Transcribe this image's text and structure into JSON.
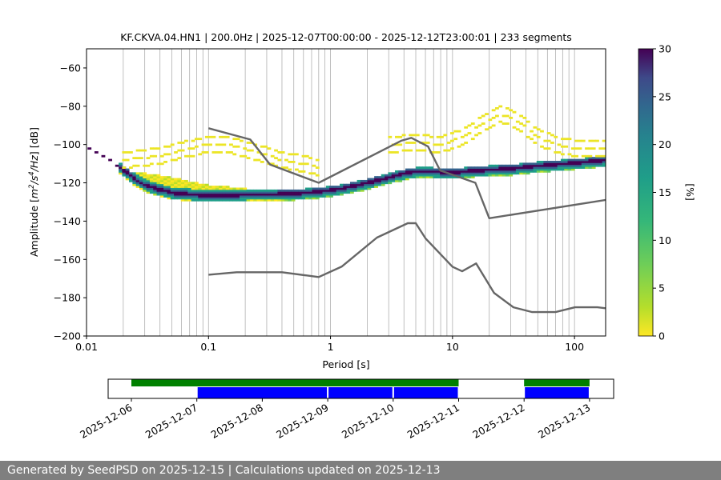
{
  "chart_data": [
    {
      "type": "heatmap",
      "title": "KF.CKVA.04.HN1 | 200.0Hz | 2025-12-07T00:00:00 - 2025-12-12T23:00:01 | 233 segments",
      "xlabel": "Period [s]",
      "ylabel_parts": [
        "Amplitude [",
        "m",
        "2",
        "/",
        "s",
        "4",
        "/",
        "Hz",
        "] [dB]"
      ],
      "xscale": "log",
      "xlim": [
        0.01,
        180
      ],
      "ylim": [
        -200,
        -50
      ],
      "x_ticks": [
        0.01,
        0.1,
        1,
        10,
        100
      ],
      "x_tick_labels": [
        "0.01",
        "0.1",
        "1",
        "10",
        "100"
      ],
      "y_ticks": [
        -200,
        -180,
        -160,
        -140,
        -120,
        -100,
        -80,
        -60
      ],
      "y_tick_labels": [
        "−200",
        "−180",
        "−160",
        "−140",
        "−120",
        "−100",
        "−80",
        "−60"
      ],
      "grid": "vertical lines at log-decade subdivisions",
      "colormap": "viridis_r",
      "colorbar": {
        "label": "[%]",
        "range": [
          0,
          30
        ],
        "ticks": [
          0,
          5,
          10,
          15,
          20,
          25,
          30
        ],
        "tick_labels": [
          "0",
          "5",
          "10",
          "15",
          "20",
          "25",
          "30"
        ]
      },
      "mode_curve": {
        "x": [
          0.01,
          0.012,
          0.015,
          0.02,
          0.025,
          0.03,
          0.04,
          0.05,
          0.07,
          0.1,
          0.15,
          0.2,
          0.3,
          0.5,
          0.8,
          1.2,
          2,
          3,
          4,
          5,
          7,
          10,
          15,
          20,
          30,
          50,
          80,
          120,
          180
        ],
        "y": [
          -101,
          -104,
          -107,
          -113,
          -118,
          -121,
          -123.5,
          -125,
          -126,
          -126.5,
          -126.5,
          -126,
          -126,
          -125.5,
          -124.5,
          -123,
          -120,
          -117,
          -115,
          -114,
          -114,
          -114.5,
          -113.5,
          -113,
          -112.5,
          -111,
          -110,
          -109,
          -108
        ]
      },
      "spread_curve": {
        "x": [
          0.02,
          0.03,
          0.05,
          0.08,
          0.1,
          0.15,
          0.2,
          0.3,
          0.5,
          0.8,
          1.2,
          2,
          3,
          5,
          8,
          10
        ],
        "y": [
          -114,
          -115,
          -117,
          -120,
          -121,
          -122,
          -123,
          -124,
          -124,
          -123,
          -121,
          -119,
          -117,
          -116,
          -115,
          -115
        ]
      },
      "high_noise_model": {
        "x": [
          0.1,
          0.22,
          0.32,
          0.8,
          3.8,
          4.6,
          6.3,
          7.9,
          15.4,
          20,
          354.8
        ],
        "y": [
          -91.5,
          -97.4,
          -110.5,
          -120,
          -98,
          -96.5,
          -101,
          -113.5,
          -120,
          -138.5,
          -126
        ]
      },
      "low_noise_model": {
        "x": [
          0.1,
          0.17,
          0.4,
          0.8,
          1.24,
          2.4,
          4.3,
          5,
          6,
          10,
          12,
          15.6,
          21.9,
          31.6,
          45,
          70,
          101,
          154,
          180
        ],
        "y": [
          -168,
          -166.7,
          -166.7,
          -169.2,
          -163.7,
          -148.6,
          -141.1,
          -141.1,
          -149,
          -163.8,
          -166.2,
          -162.1,
          -177.5,
          -185,
          -187.5,
          -187.5,
          -185,
          -185,
          -185.5
        ]
      },
      "scatter_band_1": {
        "x": [
          0.02,
          0.04,
          0.07,
          0.1,
          0.15,
          0.25,
          0.4,
          0.6,
          0.8
        ],
        "y": [
          -112,
          -110,
          -106,
          -103.5,
          -104,
          -108,
          -112,
          -114,
          -116
        ]
      },
      "scatter_band_2": {
        "x": [
          3,
          5,
          8,
          12,
          18,
          25,
          35,
          50,
          70,
          100,
          150,
          180
        ],
        "y": [
          -104,
          -103,
          -104,
          -100,
          -93,
          -88,
          -92,
          -100,
          -104,
          -106,
          -106,
          -106
        ]
      }
    },
    {
      "type": "timeline",
      "x_tick_labels": [
        "2025-12-06",
        "2025-12-07",
        "2025-12-08",
        "2025-12-09",
        "2025-12-10",
        "2025-12-11",
        "2025-12-12",
        "2025-12-13"
      ],
      "green_bars": [
        {
          "start": "2025-12-06T00:00",
          "end": "2025-12-11T00:00"
        },
        {
          "start": "2025-12-12T00:00",
          "end": "2025-12-13T00:00"
        }
      ],
      "blue_bars": [
        {
          "start": "2025-12-07T00:00",
          "end": "2025-12-09T00:00"
        },
        {
          "start": "2025-12-09T00:00",
          "end": "2025-12-10T00:00"
        },
        {
          "start": "2025-12-10T00:00",
          "end": "2025-12-11T00:00"
        },
        {
          "start": "2025-12-12T00:00",
          "end": "2025-12-13T00:00"
        }
      ],
      "colors": {
        "green": "#008000",
        "blue": "#0000ff"
      }
    }
  ],
  "footer": {
    "text": "Generated by SeedPSD on 2025-12-15 | Calculations updated on 2025-12-13"
  },
  "colors": {
    "noise_model": "#666666",
    "grid": "#b0b0b0",
    "footer_bg": "#7f7f7f"
  }
}
